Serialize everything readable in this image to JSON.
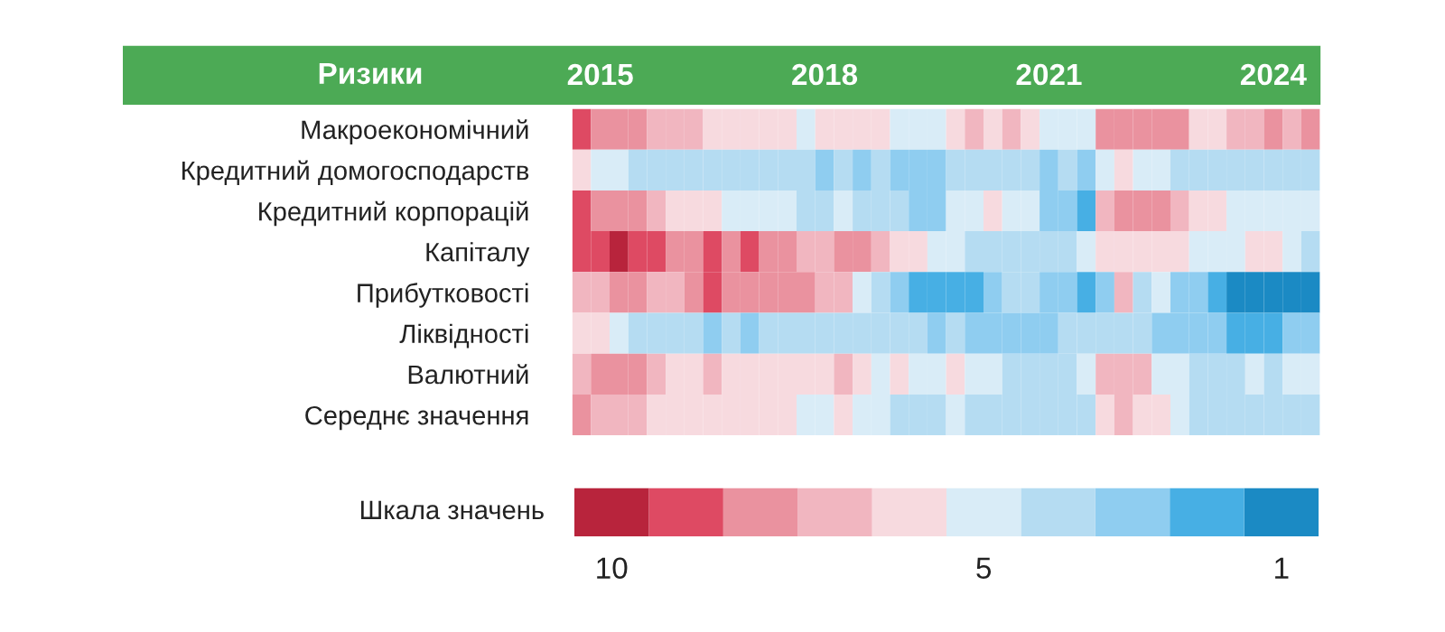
{
  "chart_data": {
    "type": "heatmap",
    "ylabel": "Ризики",
    "clabel": "Шкала значень",
    "categories": [
      null,
      "2015",
      null,
      null,
      null,
      null,
      null,
      null,
      null,
      null,
      null,
      null,
      null,
      "2018",
      null,
      null,
      null,
      null,
      null,
      null,
      null,
      null,
      null,
      null,
      null,
      "2021",
      null,
      null,
      null,
      null,
      null,
      null,
      null,
      null,
      null,
      null,
      null,
      "2024",
      null,
      null
    ],
    "y_categories": [
      "Макроекономічний",
      "Кредитний домогосподарств",
      "Кредитний корпорацій",
      "Капіталу",
      "Прибутковості",
      "Ліквідності",
      "Валютний",
      "Середнє значення"
    ],
    "cells": [
      [
        9,
        8,
        8,
        8,
        7,
        7,
        7,
        6,
        6,
        6,
        6,
        6,
        5,
        6,
        6,
        6,
        6,
        5,
        5,
        5,
        6,
        7,
        6,
        7,
        6,
        5,
        5,
        5,
        8,
        8,
        8,
        8,
        8,
        6,
        6,
        7,
        7,
        8,
        7,
        8
      ],
      [
        6,
        5,
        5,
        4,
        4,
        4,
        4,
        4,
        4,
        4,
        4,
        4,
        4,
        3,
        4,
        3,
        4,
        3,
        3,
        3,
        4,
        4,
        4,
        4,
        4,
        3,
        4,
        3,
        5,
        6,
        5,
        5,
        4,
        4,
        4,
        4,
        4,
        4,
        4,
        4
      ],
      [
        9,
        8,
        8,
        8,
        7,
        6,
        6,
        6,
        5,
        5,
        5,
        5,
        4,
        4,
        5,
        4,
        4,
        4,
        3,
        3,
        5,
        5,
        6,
        5,
        5,
        3,
        3,
        2,
        7,
        8,
        8,
        8,
        7,
        6,
        6,
        5,
        5,
        5,
        5,
        5
      ],
      [
        9,
        9,
        10,
        9,
        9,
        8,
        8,
        9,
        8,
        9,
        8,
        8,
        7,
        7,
        8,
        8,
        7,
        6,
        6,
        5,
        5,
        4,
        4,
        4,
        4,
        4,
        4,
        5,
        6,
        6,
        6,
        6,
        6,
        5,
        5,
        5,
        6,
        6,
        5,
        4
      ],
      [
        7,
        7,
        8,
        8,
        7,
        7,
        8,
        9,
        8,
        8,
        8,
        8,
        8,
        7,
        7,
        5,
        4,
        3,
        2,
        2,
        2,
        2,
        3,
        4,
        4,
        3,
        3,
        2,
        3,
        7,
        4,
        5,
        3,
        3,
        2,
        1,
        1,
        1,
        1,
        1
      ],
      [
        6,
        6,
        5,
        4,
        4,
        4,
        4,
        3,
        4,
        3,
        4,
        4,
        4,
        4,
        4,
        4,
        4,
        4,
        4,
        3,
        4,
        3,
        3,
        3,
        3,
        3,
        4,
        4,
        4,
        4,
        4,
        3,
        3,
        3,
        3,
        2,
        2,
        2,
        3,
        3
      ],
      [
        7,
        8,
        8,
        8,
        7,
        6,
        6,
        7,
        6,
        6,
        6,
        6,
        6,
        6,
        7,
        6,
        5,
        6,
        5,
        5,
        6,
        5,
        5,
        4,
        4,
        4,
        4,
        5,
        7,
        7,
        7,
        5,
        5,
        4,
        4,
        4,
        5,
        4,
        5,
        5
      ],
      [
        8,
        7,
        7,
        7,
        6,
        6,
        6,
        6,
        6,
        6,
        6,
        6,
        5,
        5,
        6,
        5,
        5,
        4,
        4,
        4,
        5,
        4,
        4,
        4,
        4,
        4,
        4,
        4,
        6,
        7,
        6,
        6,
        5,
        4,
        4,
        4,
        4,
        4,
        4,
        4
      ]
    ],
    "clim": [
      10.5,
      0.5
    ],
    "cticks": [
      10,
      5,
      1
    ],
    "colors": [
      "#b8243c",
      "#de4a63",
      "#ea929f",
      "#f1b6c0",
      "#f7dadf",
      "#d9ecf7",
      "#b5dcf2",
      "#8fcdf0",
      "#47afe4",
      "#1b8ac4"
    ],
    "grid": false
  }
}
